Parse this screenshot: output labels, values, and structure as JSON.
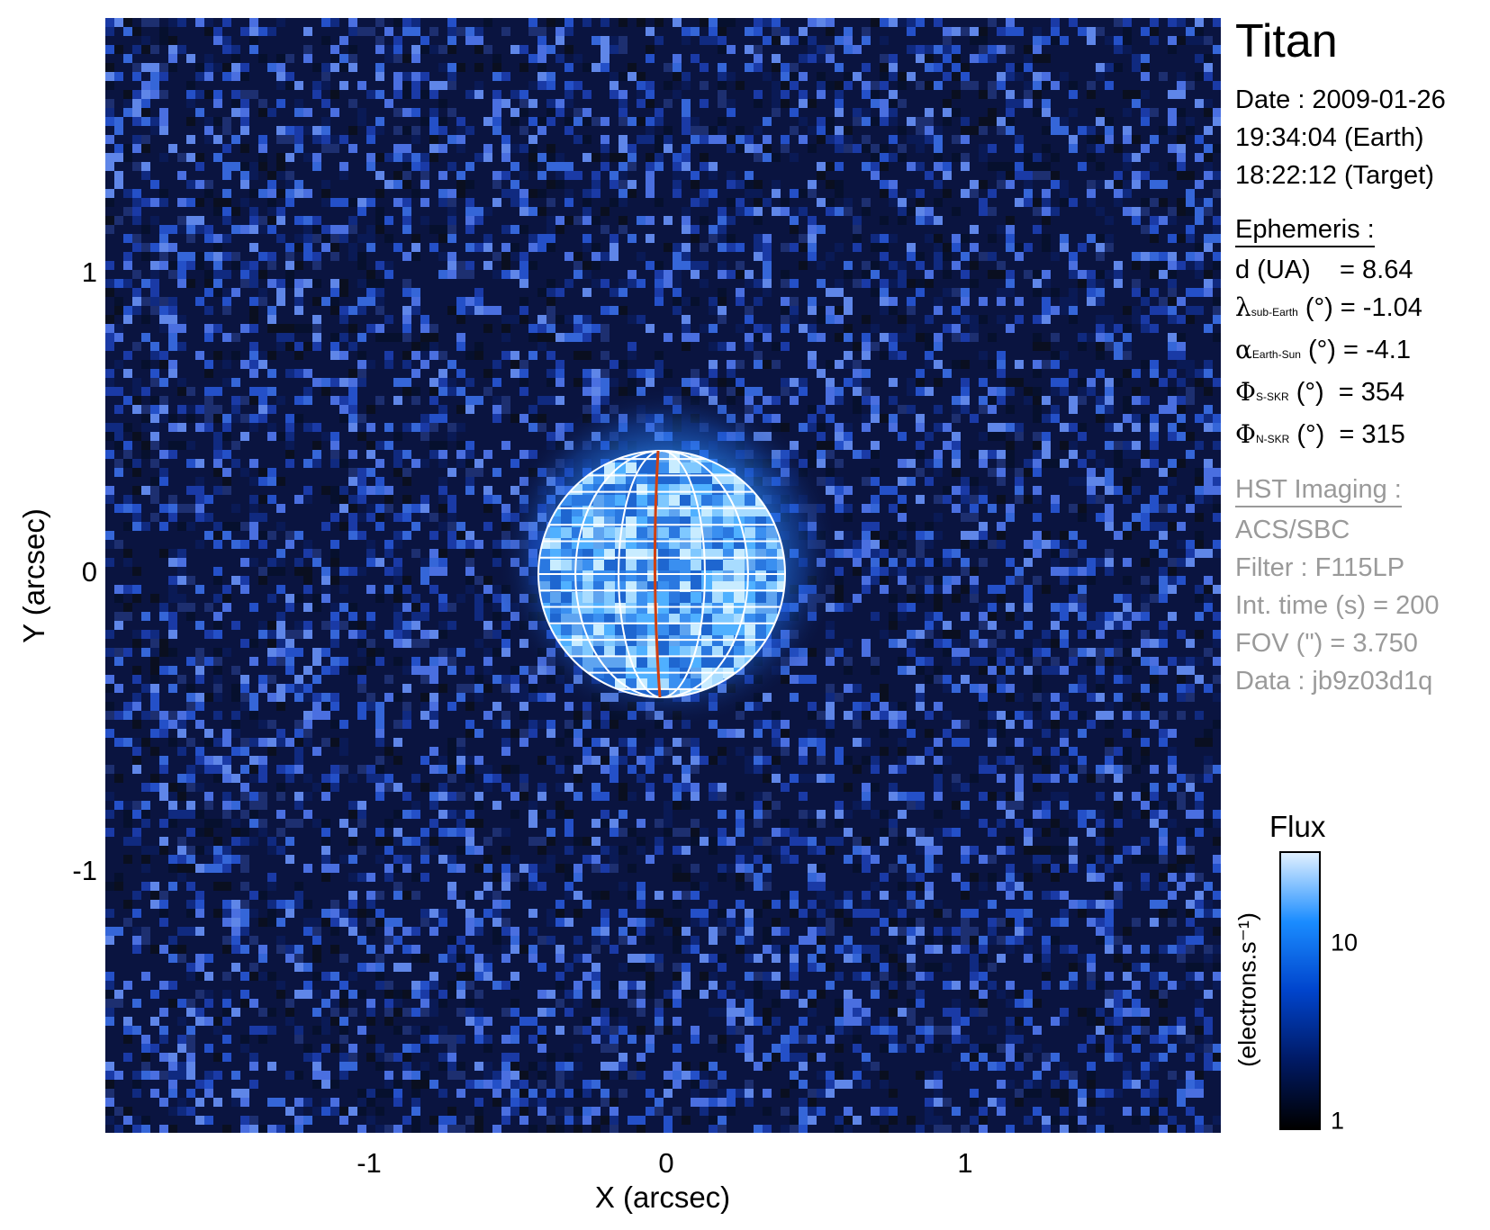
{
  "target": "Titan",
  "date": {
    "line1": "Date : 2009-01-26",
    "line2": "19:34:04 (Earth)",
    "line3": "18:22:12 (Target)"
  },
  "ephemeris": {
    "heading": "Ephemeris :",
    "d": {
      "label": "d (UA)",
      "value": "= 8.64"
    },
    "lambda": {
      "symbol": "λ",
      "sub": "sub-Earth",
      "unit": " (°)",
      "value": " = -1.04"
    },
    "alpha": {
      "symbol": "α",
      "sub": "Earth-Sun",
      "unit": " (°)",
      "value": " = -4.1"
    },
    "phi_s": {
      "symbol": "Φ",
      "sub": "S-SKR",
      "unit": " (°)",
      "value": " = 354"
    },
    "phi_n": {
      "symbol": "Φ",
      "sub": "N-SKR",
      "unit": " (°)",
      "value": " = 315"
    }
  },
  "hst": {
    "heading": "HST Imaging :",
    "instrument": "ACS/SBC",
    "filter": "Filter : F115LP",
    "int_time": "Int. time (s) = 200",
    "fov": "FOV (\") = 3.750",
    "data": "Data : jb9z03d1q"
  },
  "axes": {
    "x_title": "X (arcsec)",
    "y_title": "Y (arcsec)",
    "x_ticks": [
      "-1",
      "0",
      "1"
    ],
    "y_ticks": [
      "1",
      "0",
      "-1"
    ]
  },
  "colorbar": {
    "title": "Flux",
    "label": "(electrons.s⁻¹)",
    "ticks": [
      "10",
      "1"
    ],
    "colors": [
      "#000000",
      "#001a66",
      "#0044cc",
      "#1a8cff",
      "#e0f0ff"
    ]
  },
  "colors": {
    "background_sky": "#0a1440",
    "grid": "#ffffff",
    "meridian": "#d04010"
  }
}
